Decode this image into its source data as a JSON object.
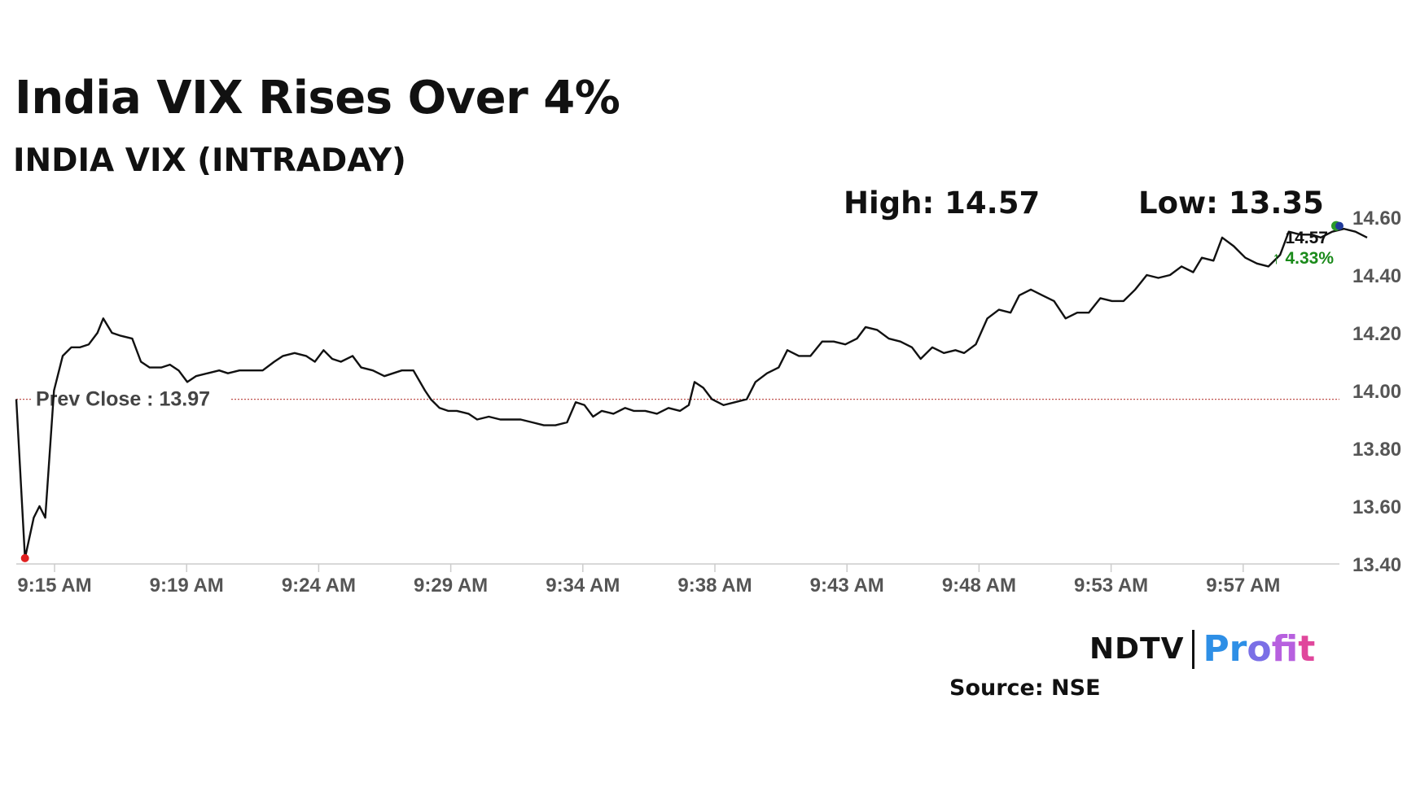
{
  "title": "India VIX Rises Over 4%",
  "subtitle": "INDIA VIX (INTRADAY)",
  "high_label": "High: 14.57",
  "low_label": "Low: 13.35",
  "prev_close_label": "Prev Close : 13.97",
  "last_value_label": "14.57",
  "change_label": "↑ 4.33%",
  "source": "Source: NSE",
  "logo": {
    "left": "NDTV",
    "right": "Profit"
  },
  "colors": {
    "line": "#111111",
    "prev_close": "#c0504d",
    "up": "#1a8a1a",
    "low_marker": "#e02020",
    "last_marker_1": "#2a9a2a",
    "last_marker_2": "#1f3a9a",
    "axis": "#cccccc"
  },
  "chart_data": {
    "type": "line",
    "title": "INDIA VIX (INTRADAY)",
    "ylim": [
      13.4,
      14.6
    ],
    "y_ticks": [
      "14.60",
      "14.40",
      "14.20",
      "14.00",
      "13.80",
      "13.60",
      "13.40"
    ],
    "x_ticks": [
      "9:15 AM",
      "9:19 AM",
      "9:24 AM",
      "9:29 AM",
      "9:34 AM",
      "9:38 AM",
      "9:43 AM",
      "9:48 AM",
      "9:53 AM",
      "9:57 AM"
    ],
    "x_range_minutes": [
      0,
      46
    ],
    "prev_close": 13.97,
    "high": 14.57,
    "low": 13.35,
    "last": 14.57,
    "change_pct": 4.33,
    "series": [
      {
        "values": [
          [
            0.0,
            13.97
          ],
          [
            0.3,
            13.42
          ],
          [
            0.6,
            13.56
          ],
          [
            0.8,
            13.6
          ],
          [
            1.0,
            13.56
          ],
          [
            1.3,
            14.0
          ],
          [
            1.6,
            14.12
          ],
          [
            1.9,
            14.15
          ],
          [
            2.2,
            14.15
          ],
          [
            2.5,
            14.16
          ],
          [
            2.8,
            14.2
          ],
          [
            3.0,
            14.25
          ],
          [
            3.3,
            14.2
          ],
          [
            3.6,
            14.19
          ],
          [
            4.0,
            14.18
          ],
          [
            4.3,
            14.1
          ],
          [
            4.6,
            14.08
          ],
          [
            5.0,
            14.08
          ],
          [
            5.3,
            14.09
          ],
          [
            5.6,
            14.07
          ],
          [
            5.9,
            14.03
          ],
          [
            6.2,
            14.05
          ],
          [
            6.6,
            14.06
          ],
          [
            7.0,
            14.07
          ],
          [
            7.3,
            14.06
          ],
          [
            7.7,
            14.07
          ],
          [
            8.1,
            14.07
          ],
          [
            8.5,
            14.07
          ],
          [
            8.9,
            14.1
          ],
          [
            9.2,
            14.12
          ],
          [
            9.6,
            14.13
          ],
          [
            10.0,
            14.12
          ],
          [
            10.3,
            14.1
          ],
          [
            10.6,
            14.14
          ],
          [
            10.9,
            14.11
          ],
          [
            11.2,
            14.1
          ],
          [
            11.6,
            14.12
          ],
          [
            11.9,
            14.08
          ],
          [
            12.3,
            14.07
          ],
          [
            12.7,
            14.05
          ],
          [
            13.0,
            14.06
          ],
          [
            13.3,
            14.07
          ],
          [
            13.7,
            14.07
          ],
          [
            14.1,
            14.0
          ],
          [
            14.3,
            13.97
          ],
          [
            14.6,
            13.94
          ],
          [
            14.9,
            13.93
          ],
          [
            15.2,
            13.93
          ],
          [
            15.6,
            13.92
          ],
          [
            15.9,
            13.9
          ],
          [
            16.3,
            13.91
          ],
          [
            16.7,
            13.9
          ],
          [
            17.0,
            13.9
          ],
          [
            17.4,
            13.9
          ],
          [
            17.8,
            13.89
          ],
          [
            18.2,
            13.88
          ],
          [
            18.6,
            13.88
          ],
          [
            19.0,
            13.89
          ],
          [
            19.3,
            13.96
          ],
          [
            19.6,
            13.95
          ],
          [
            19.9,
            13.91
          ],
          [
            20.2,
            13.93
          ],
          [
            20.6,
            13.92
          ],
          [
            21.0,
            13.94
          ],
          [
            21.3,
            13.93
          ],
          [
            21.7,
            13.93
          ],
          [
            22.1,
            13.92
          ],
          [
            22.5,
            13.94
          ],
          [
            22.9,
            13.93
          ],
          [
            23.2,
            13.95
          ],
          [
            23.4,
            14.03
          ],
          [
            23.7,
            14.01
          ],
          [
            24.0,
            13.97
          ],
          [
            24.4,
            13.95
          ],
          [
            24.8,
            13.96
          ],
          [
            25.2,
            13.97
          ],
          [
            25.5,
            14.03
          ],
          [
            25.9,
            14.06
          ],
          [
            26.3,
            14.08
          ],
          [
            26.6,
            14.14
          ],
          [
            27.0,
            14.12
          ],
          [
            27.4,
            14.12
          ],
          [
            27.8,
            14.17
          ],
          [
            28.2,
            14.17
          ],
          [
            28.6,
            14.16
          ],
          [
            29.0,
            14.18
          ],
          [
            29.3,
            14.22
          ],
          [
            29.7,
            14.21
          ],
          [
            30.1,
            14.18
          ],
          [
            30.5,
            14.17
          ],
          [
            30.9,
            14.15
          ],
          [
            31.2,
            14.11
          ],
          [
            31.6,
            14.15
          ],
          [
            32.0,
            14.13
          ],
          [
            32.4,
            14.14
          ],
          [
            32.7,
            14.13
          ],
          [
            33.1,
            14.16
          ],
          [
            33.5,
            14.25
          ],
          [
            33.9,
            14.28
          ],
          [
            34.3,
            14.27
          ],
          [
            34.6,
            14.33
          ],
          [
            35.0,
            14.35
          ],
          [
            35.4,
            14.33
          ],
          [
            35.8,
            14.31
          ],
          [
            36.2,
            14.25
          ],
          [
            36.6,
            14.27
          ],
          [
            37.0,
            14.27
          ],
          [
            37.4,
            14.32
          ],
          [
            37.8,
            14.31
          ],
          [
            38.2,
            14.31
          ],
          [
            38.6,
            14.35
          ],
          [
            39.0,
            14.4
          ],
          [
            39.4,
            14.39
          ],
          [
            39.8,
            14.4
          ],
          [
            40.2,
            14.43
          ],
          [
            40.6,
            14.41
          ],
          [
            40.9,
            14.46
          ],
          [
            41.3,
            14.45
          ],
          [
            41.6,
            14.53
          ],
          [
            42.0,
            14.5
          ],
          [
            42.4,
            14.46
          ],
          [
            42.8,
            14.44
          ],
          [
            43.2,
            14.43
          ],
          [
            43.6,
            14.47
          ],
          [
            43.9,
            14.55
          ],
          [
            44.3,
            14.54
          ],
          [
            44.7,
            14.54
          ],
          [
            45.0,
            14.53
          ],
          [
            45.4,
            14.55
          ],
          [
            45.8,
            14.56
          ],
          [
            46.2,
            14.55
          ],
          [
            46.6,
            14.53
          ]
        ]
      }
    ]
  }
}
